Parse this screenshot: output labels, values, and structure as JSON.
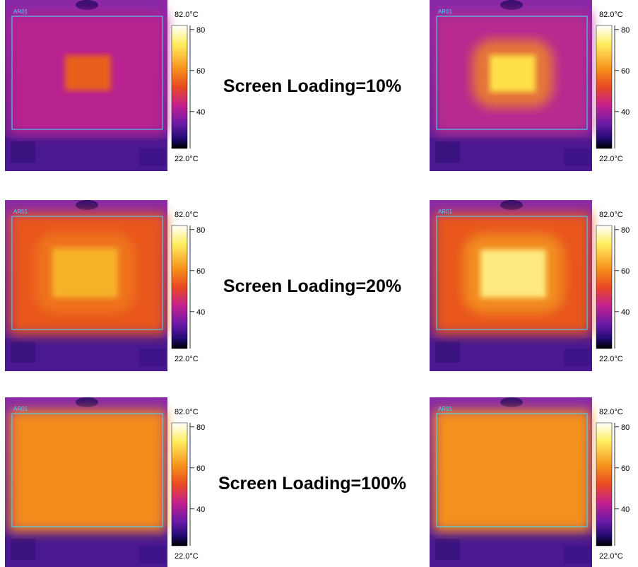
{
  "rows": [
    {
      "label": "Screen Loading=10%",
      "panels": [
        {
          "roi": "AR01",
          "scale": {
            "max": {
              "value": 82,
              "label": "82.0°C"
            },
            "min": {
              "value": 22,
              "label": "22.0°C"
            },
            "ticks": [
              80,
              60,
              40
            ]
          }
        },
        {
          "roi": "AR01",
          "scale": {
            "max": {
              "value": 82,
              "label": "82.0°C"
            },
            "min": {
              "value": 22,
              "label": "22.0°C"
            },
            "ticks": [
              80,
              60,
              40
            ]
          }
        }
      ]
    },
    {
      "label": "Screen Loading=20%",
      "panels": [
        {
          "roi": "AR01",
          "scale": {
            "max": {
              "value": 82,
              "label": "82.0°C"
            },
            "min": {
              "value": 22,
              "label": "22.0°C"
            },
            "ticks": [
              80,
              60,
              40
            ]
          }
        },
        {
          "roi": "AR01",
          "scale": {
            "max": {
              "value": 82,
              "label": "82.0°C"
            },
            "min": {
              "value": 22,
              "label": "22.0°C"
            },
            "ticks": [
              80,
              60,
              40
            ]
          }
        }
      ]
    },
    {
      "label": "Screen Loading=100%",
      "panels": [
        {
          "roi": "AR01",
          "scale": {
            "max": {
              "value": 82,
              "label": "82.0°C"
            },
            "min": {
              "value": 22,
              "label": "22.0°C"
            },
            "ticks": [
              80,
              60,
              40
            ]
          }
        },
        {
          "roi": "AR01",
          "scale": {
            "max": {
              "value": 82,
              "label": "82.0°C"
            },
            "min": {
              "value": 22,
              "label": "22.0°C"
            },
            "ticks": [
              80,
              60,
              40
            ]
          }
        }
      ]
    }
  ]
}
